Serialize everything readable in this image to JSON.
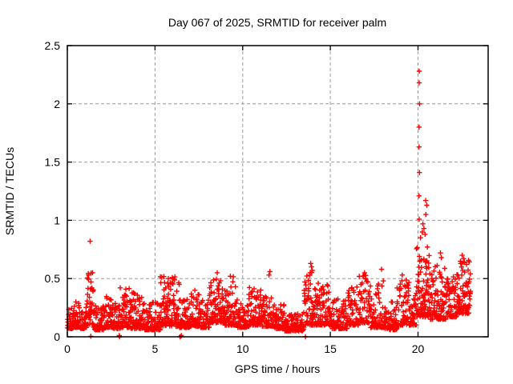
{
  "chart_data": {
    "type": "scatter",
    "title": "Day 067 of 2025, SRMTID for receiver palm",
    "xlabel": "GPS time / hours",
    "ylabel": "SRMTID / TECUs",
    "xlim": [
      0,
      24
    ],
    "ylim": [
      0,
      2.5
    ],
    "xtick_values": [
      0,
      5,
      10,
      15,
      20
    ],
    "xtick_labels": [
      "0",
      "5",
      "10",
      "15",
      "20"
    ],
    "ytick_values": [
      0,
      0.5,
      1,
      1.5,
      2,
      2.5
    ],
    "ytick_labels": [
      "0",
      "0.5",
      "1",
      "1.5",
      "2",
      "2.5"
    ],
    "grid": true,
    "grid_at_xticks": [
      5,
      10,
      15,
      20
    ],
    "grid_at_yticks": [
      0.5,
      1,
      1.5,
      2
    ],
    "legend": "none",
    "marker": "plus",
    "marker_color": "#ff0000",
    "grid_color": "#9c9c9c",
    "border_color": "#000000",
    "background_color": "#ffffff",
    "series_description": "Single red '+' scatter series of SRMTID vs GPS time; dense noise band 0.05-0.5 TECUs across 0-23 h with a large spike to ~2.3 TECUs near 20.1 h",
    "bands": {
      "columns": [
        "h_start",
        "h_end",
        "count",
        "y_min",
        "y_max",
        "skew"
      ],
      "rows": [
        [
          0.0,
          0.35,
          36,
          0.07,
          0.26,
          2.0
        ],
        [
          0.35,
          0.75,
          40,
          0.08,
          0.34,
          2.0
        ],
        [
          0.75,
          1.1,
          34,
          0.07,
          0.26,
          2.0
        ],
        [
          1.1,
          1.5,
          44,
          0.1,
          0.55,
          1.8
        ],
        [
          1.5,
          2.1,
          60,
          0.06,
          0.27,
          2.2
        ],
        [
          2.1,
          2.6,
          50,
          0.08,
          0.36,
          2.0
        ],
        [
          2.6,
          3.0,
          40,
          0.07,
          0.3,
          2.0
        ],
        [
          3.0,
          3.6,
          60,
          0.08,
          0.45,
          2.0
        ],
        [
          3.6,
          4.3,
          70,
          0.07,
          0.38,
          2.4
        ],
        [
          4.3,
          5.3,
          95,
          0.06,
          0.3,
          2.2
        ],
        [
          5.3,
          6.4,
          105,
          0.09,
          0.52,
          1.9
        ],
        [
          6.4,
          7.0,
          58,
          0.08,
          0.33,
          2.2
        ],
        [
          7.0,
          7.6,
          55,
          0.09,
          0.42,
          2.0
        ],
        [
          7.6,
          8.1,
          48,
          0.08,
          0.33,
          2.2
        ],
        [
          8.1,
          9.0,
          88,
          0.12,
          0.5,
          1.9
        ],
        [
          9.0,
          9.7,
          65,
          0.1,
          0.52,
          2.2
        ],
        [
          9.7,
          10.35,
          62,
          0.08,
          0.3,
          2.0
        ],
        [
          10.35,
          11.1,
          70,
          0.1,
          0.43,
          2.2
        ],
        [
          11.1,
          11.8,
          65,
          0.09,
          0.35,
          2.2
        ],
        [
          11.8,
          12.4,
          55,
          0.07,
          0.28,
          2.0
        ],
        [
          12.4,
          13.5,
          95,
          0.05,
          0.22,
          1.8
        ],
        [
          13.5,
          14.3,
          72,
          0.1,
          0.58,
          1.9
        ],
        [
          14.3,
          15.1,
          72,
          0.1,
          0.46,
          2.4
        ],
        [
          15.1,
          16.0,
          78,
          0.07,
          0.33,
          2.2
        ],
        [
          16.0,
          16.6,
          55,
          0.1,
          0.43,
          2.0
        ],
        [
          16.6,
          17.3,
          62,
          0.12,
          0.53,
          2.0
        ],
        [
          17.3,
          18.1,
          68,
          0.08,
          0.48,
          2.6
        ],
        [
          18.1,
          18.8,
          60,
          0.06,
          0.3,
          2.0
        ],
        [
          18.8,
          19.5,
          62,
          0.1,
          0.5,
          2.2
        ],
        [
          19.5,
          19.9,
          38,
          0.1,
          0.38,
          2.0
        ],
        [
          19.9,
          20.7,
          95,
          0.17,
          0.78,
          1.7
        ],
        [
          20.7,
          21.6,
          88,
          0.15,
          0.62,
          2.0
        ],
        [
          21.6,
          22.2,
          58,
          0.17,
          0.52,
          2.0
        ],
        [
          22.2,
          23.0,
          90,
          0.2,
          0.66,
          1.7
        ]
      ]
    },
    "outlier_points": [
      [
        1.3,
        0.82
      ],
      [
        8.55,
        0.55
      ],
      [
        9.3,
        0.52
      ],
      [
        11.55,
        0.56
      ],
      [
        11.5,
        0.53
      ],
      [
        13.88,
        0.63
      ],
      [
        13.93,
        0.6
      ],
      [
        13.97,
        0.57
      ],
      [
        16.95,
        0.55
      ],
      [
        17.92,
        0.58
      ],
      [
        19.1,
        0.53
      ],
      [
        21.28,
        0.72
      ],
      [
        21.33,
        0.68
      ],
      [
        22.52,
        0.7
      ],
      [
        22.6,
        0.67
      ],
      [
        20.07,
        2.28
      ],
      [
        20.07,
        2.18
      ],
      [
        20.09,
        2.0
      ],
      [
        20.06,
        1.8
      ],
      [
        20.06,
        1.63
      ],
      [
        20.08,
        1.41
      ],
      [
        20.06,
        1.21
      ],
      [
        20.07,
        1.01
      ],
      [
        20.44,
        1.17
      ],
      [
        20.5,
        1.13
      ],
      [
        20.45,
        1.05
      ],
      [
        20.28,
        0.97
      ],
      [
        20.34,
        0.93
      ],
      [
        20.24,
        0.9
      ],
      [
        20.4,
        0.88
      ],
      [
        20.14,
        0.85
      ],
      [
        1.34,
        0.005
      ],
      [
        2.96,
        0.01
      ],
      [
        2.98,
        0.0
      ],
      [
        6.43,
        0.0
      ],
      [
        6.5,
        0.01
      ],
      [
        13.58,
        0.0
      ]
    ]
  }
}
